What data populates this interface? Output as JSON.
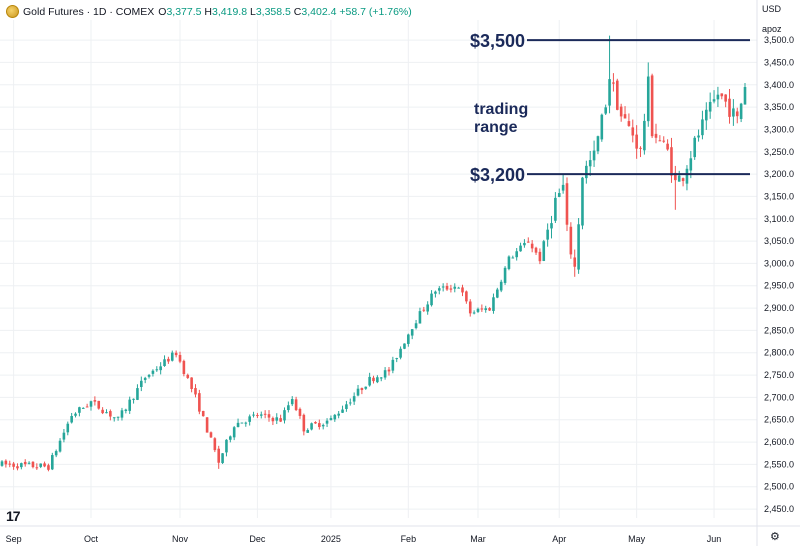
{
  "header": {
    "title": "Gold Futures · 1D · COMEX",
    "open_key": "O",
    "open": "3,377.5",
    "high_key": "H",
    "high": "3,419.8",
    "low_key": "L",
    "low": "3,358.5",
    "close_key": "C",
    "close": "3,402.4",
    "change": "+58.7 (+1.76%)"
  },
  "currency": "USD",
  "scale": "apoz",
  "icons": {
    "logo": "gold-coin-icon",
    "brand": "tradingview-logo",
    "settings": "gear-icon"
  },
  "brand_text": "17",
  "settings_glyph": "⚙",
  "colors": {
    "up": "#26a69a",
    "down": "#ef5350",
    "annotation": "#1b2a5a",
    "grid": "#eef0f3",
    "text": "#131722"
  },
  "chart_data": {
    "type": "candlestick",
    "ylim": [
      2430,
      3545
    ],
    "yticks": [
      "3,500.0",
      "3,450.0",
      "3,400.0",
      "3,350.0",
      "3,300.0",
      "3,250.0",
      "3,200.0",
      "3,150.0",
      "3,100.0",
      "3,050.0",
      "3,000.0",
      "2,950.0",
      "2,900.0",
      "2,850.0",
      "2,800.0",
      "2,750.0",
      "2,700.0",
      "2,650.0",
      "2,600.0",
      "2,550.0",
      "2,500.0",
      "2,450.0"
    ],
    "xticks": [
      {
        "label": "Sep",
        "index": 3
      },
      {
        "label": "Oct",
        "index": 23
      },
      {
        "label": "Nov",
        "index": 46
      },
      {
        "label": "Dec",
        "index": 66
      },
      {
        "label": "2025",
        "index": 85
      },
      {
        "label": "Feb",
        "index": 105
      },
      {
        "label": "Mar",
        "index": 123
      },
      {
        "label": "Apr",
        "index": 144
      },
      {
        "label": "May",
        "index": 164
      },
      {
        "label": "Jun",
        "index": 184
      }
    ],
    "n_bars": 193,
    "keypoints": [
      [
        0,
        2550
      ],
      [
        12,
        2545
      ],
      [
        18,
        2660
      ],
      [
        23,
        2690
      ],
      [
        30,
        2650
      ],
      [
        37,
        2745
      ],
      [
        45,
        2800
      ],
      [
        50,
        2700
      ],
      [
        56,
        2555
      ],
      [
        60,
        2640
      ],
      [
        66,
        2660
      ],
      [
        72,
        2650
      ],
      [
        75,
        2700
      ],
      [
        78,
        2630
      ],
      [
        85,
        2650
      ],
      [
        95,
        2740
      ],
      [
        100,
        2760
      ],
      [
        106,
        2860
      ],
      [
        112,
        2940
      ],
      [
        118,
        2950
      ],
      [
        121,
        2890
      ],
      [
        126,
        2900
      ],
      [
        131,
        3010
      ],
      [
        136,
        3050
      ],
      [
        139,
        3010
      ],
      [
        143,
        3140
      ],
      [
        145,
        3170
      ],
      [
        146,
        3070
      ],
      [
        148,
        2990
      ],
      [
        150,
        3200
      ],
      [
        153,
        3240
      ],
      [
        156,
        3360
      ],
      [
        157,
        3420
      ],
      [
        160,
        3330
      ],
      [
        163,
        3290
      ],
      [
        165,
        3250
      ],
      [
        167,
        3400
      ],
      [
        168,
        3300
      ],
      [
        172,
        3250
      ],
      [
        174,
        3180
      ],
      [
        176,
        3200
      ],
      [
        180,
        3290
      ],
      [
        185,
        3380
      ],
      [
        187,
        3360
      ],
      [
        190,
        3320
      ],
      [
        192,
        3402
      ]
    ],
    "levels": [
      {
        "label": "$3,500",
        "value": 3500
      },
      {
        "label": "$3,200",
        "value": 3200
      }
    ],
    "annotation": {
      "lines": [
        "trading",
        "range"
      ],
      "index": 123,
      "value": 3400
    },
    "grid": true
  }
}
